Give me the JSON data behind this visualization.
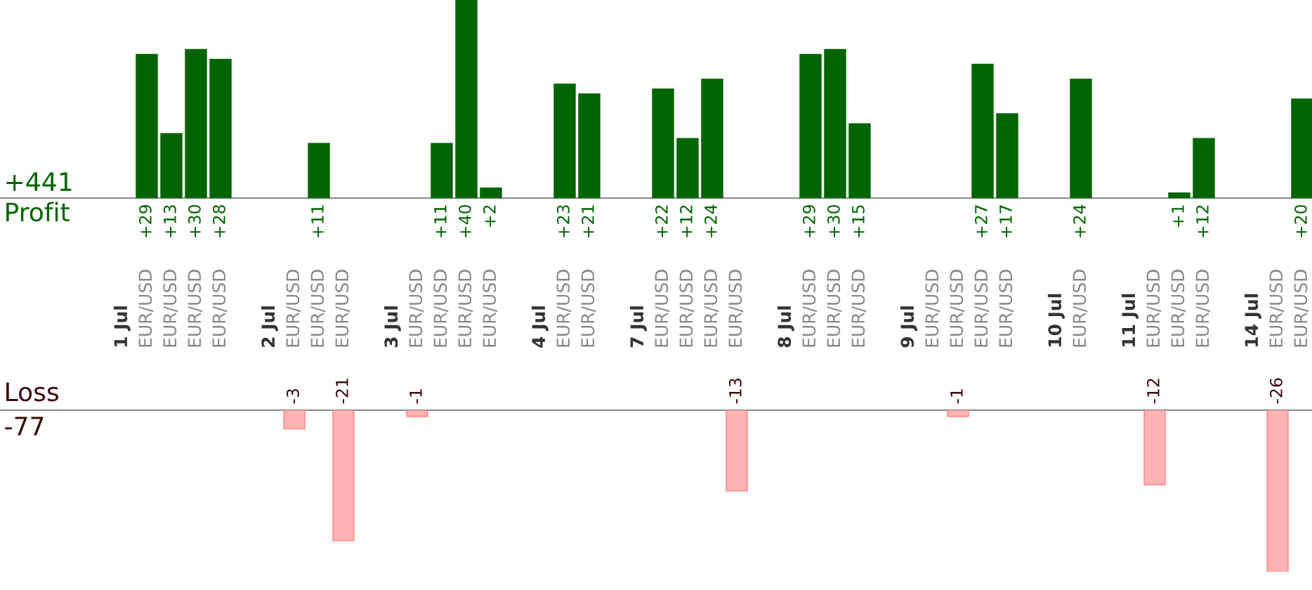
{
  "chart_data": [
    {
      "type": "bar",
      "categories": [
        "1 Jul",
        "EUR/USD",
        "EUR/USD",
        "EUR/USD",
        "EUR/USD",
        null,
        "2 Jul",
        "EUR/USD",
        "EUR/USD",
        "EUR/USD",
        null,
        "3 Jul",
        "EUR/USD",
        "EUR/USD",
        "EUR/USD",
        "EUR/USD",
        null,
        "4 Jul",
        "EUR/USD",
        "EUR/USD",
        null,
        "7 Jul",
        "EUR/USD",
        "EUR/USD",
        "EUR/USD",
        "EUR/USD",
        null,
        "8 Jul",
        "EUR/USD",
        "EUR/USD",
        "EUR/USD",
        null,
        "9 Jul",
        "EUR/USD",
        "EUR/USD",
        "EUR/USD",
        "EUR/USD",
        null,
        "10 Jul",
        "EUR/USD",
        null,
        "11 Jul",
        "EUR/USD",
        "EUR/USD",
        "EUR/USD",
        null,
        "14 Jul",
        "EUR/USD",
        "EUR/USD"
      ],
      "series": [
        {
          "color": "#006400",
          "values": [
            null,
            29,
            13,
            30,
            28,
            null,
            null,
            null,
            11,
            null,
            null,
            null,
            null,
            11,
            40,
            2,
            null,
            null,
            23,
            21,
            null,
            null,
            22,
            12,
            24,
            null,
            null,
            null,
            29,
            30,
            15,
            null,
            null,
            null,
            null,
            27,
            17,
            null,
            null,
            24,
            null,
            null,
            null,
            1,
            12,
            null,
            null,
            null,
            20
          ],
          "value_labels": [
            null,
            "+29",
            "+13",
            "+30",
            "+28",
            null,
            null,
            null,
            "+11",
            null,
            null,
            null,
            null,
            "+11",
            "+40",
            "+2",
            null,
            null,
            "+23",
            "+21",
            null,
            null,
            "+22",
            "+12",
            "+24",
            null,
            null,
            null,
            "+29",
            "+30",
            "+15",
            null,
            null,
            null,
            null,
            "+27",
            "+17",
            null,
            null,
            "+24",
            null,
            null,
            null,
            "+1",
            "+12",
            null,
            null,
            null,
            "+20"
          ]
        }
      ],
      "tick_labels": "x",
      "annotations": [
        "+441",
        "Profit"
      ]
    },
    {
      "type": "bar",
      "categories": [
        null,
        null,
        null,
        null,
        null,
        null,
        null,
        null,
        null,
        null,
        null,
        null,
        null,
        null,
        null,
        null,
        null,
        null,
        null,
        null,
        null,
        null,
        null,
        null,
        null,
        null,
        null,
        null,
        null,
        null,
        null,
        null,
        null,
        null,
        null,
        null,
        null,
        null,
        null,
        null,
        null,
        null,
        null,
        null,
        null,
        null,
        null,
        null,
        null
      ],
      "series": [
        {
          "color": "#ffb3b3",
          "values": [
            null,
            null,
            null,
            null,
            null,
            null,
            null,
            -3,
            null,
            -21,
            null,
            null,
            -1,
            null,
            null,
            null,
            null,
            null,
            null,
            null,
            null,
            null,
            null,
            null,
            null,
            -13,
            null,
            null,
            null,
            null,
            null,
            null,
            null,
            null,
            -1,
            null,
            null,
            null,
            null,
            null,
            null,
            null,
            -12,
            null,
            null,
            null,
            null,
            -26,
            null
          ],
          "value_labels": [
            null,
            null,
            null,
            null,
            null,
            null,
            null,
            "-3",
            null,
            "-21",
            null,
            null,
            "-1",
            null,
            null,
            null,
            null,
            null,
            null,
            null,
            null,
            null,
            null,
            null,
            null,
            "-13",
            null,
            null,
            null,
            null,
            null,
            null,
            null,
            null,
            "-1",
            null,
            null,
            null,
            null,
            null,
            null,
            null,
            "-12",
            null,
            null,
            null,
            null,
            "-26",
            null
          ]
        }
      ],
      "tick_labels": false,
      "annotations": [
        "Loss",
        "-77"
      ]
    }
  ]
}
